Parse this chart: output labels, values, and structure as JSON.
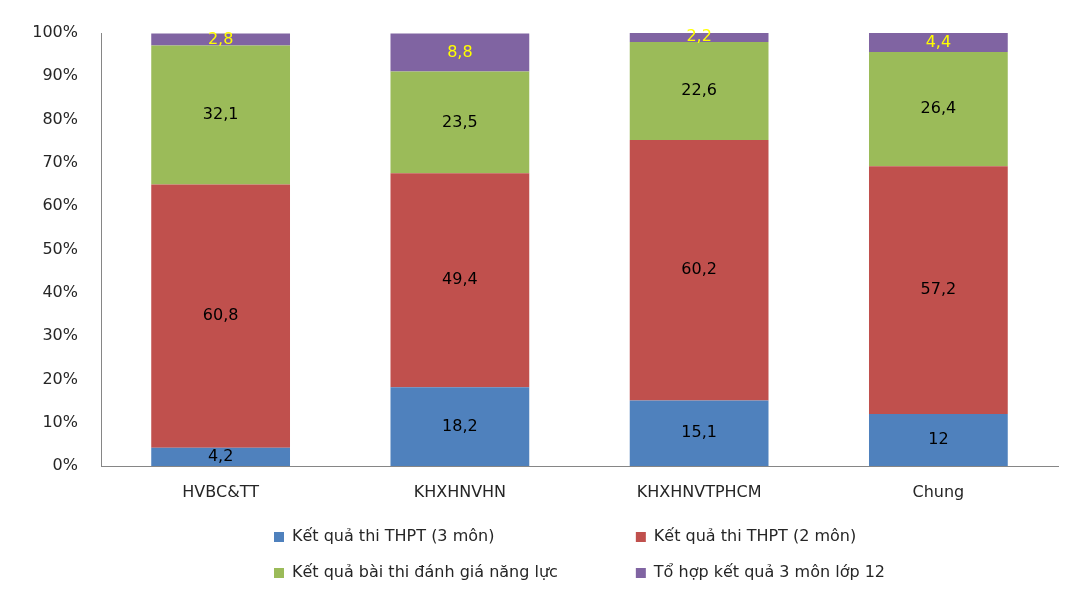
{
  "chart_data": {
    "type": "bar",
    "stacked": true,
    "categories": [
      "HVBC&TT",
      "KHXHNVHN",
      "KHXHNVTPHCM",
      "Chung"
    ],
    "series": [
      {
        "name": "Kết quả thi THPT (3 môn)",
        "color": "#4f81bd",
        "values": [
          4.2,
          18.2,
          15.1,
          12
        ],
        "value_labels": [
          "4,2",
          "18,2",
          "15,1",
          "12"
        ]
      },
      {
        "name": "Kết quả thi THPT (2 môn)",
        "color": "#c0504d",
        "values": [
          60.8,
          49.4,
          60.2,
          57.2
        ],
        "value_labels": [
          "60,8",
          "49,4",
          "60,2",
          "57,2"
        ]
      },
      {
        "name": "Kết quả bài thi đánh giá năng lực",
        "color": "#9bbb59",
        "values": [
          32.1,
          23.5,
          22.6,
          26.4
        ],
        "value_labels": [
          "32,1",
          "23,5",
          "22,6",
          "26,4"
        ]
      },
      {
        "name": "Tổ hợp kết quả 3 môn lớp 12",
        "color": "#8064a2",
        "values": [
          2.8,
          8.8,
          2.2,
          4.4
        ],
        "value_labels": [
          "2,8",
          "8,8",
          "2,2",
          "4,4"
        ]
      }
    ],
    "ylim": [
      0,
      100
    ],
    "yticks": [
      {
        "value": 0,
        "label": "0%"
      },
      {
        "value": 10,
        "label": "10%"
      },
      {
        "value": 20,
        "label": "20%"
      },
      {
        "value": 30,
        "label": "30%"
      },
      {
        "value": 40,
        "label": "40%"
      },
      {
        "value": 50,
        "label": "50%"
      },
      {
        "value": 60,
        "label": "60%"
      },
      {
        "value": 70,
        "label": "70%"
      },
      {
        "value": 80,
        "label": "80%"
      },
      {
        "value": 90,
        "label": "90%"
      },
      {
        "value": 100,
        "label": "100%"
      }
    ],
    "legend": "bottom"
  }
}
